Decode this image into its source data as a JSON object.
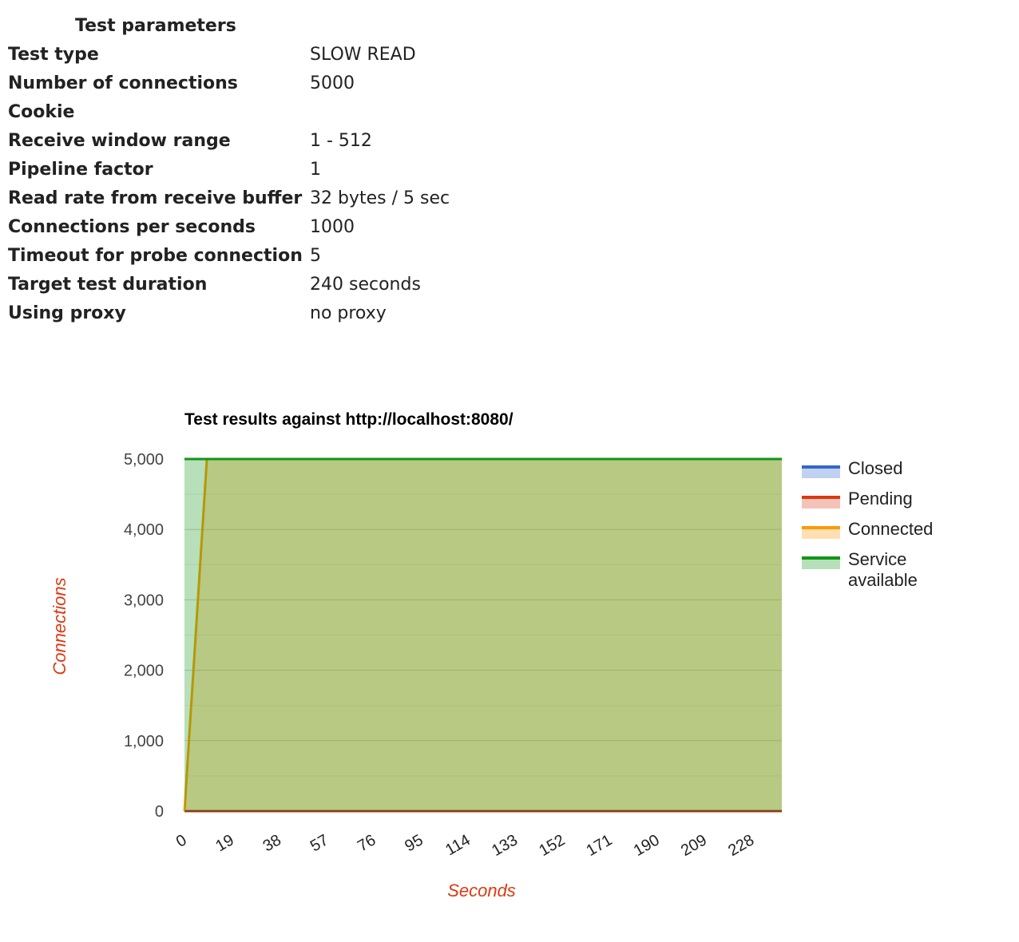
{
  "params": {
    "title": "Test parameters",
    "rows": [
      {
        "key": "Test type",
        "value": "SLOW READ"
      },
      {
        "key": "Number of connections",
        "value": "5000"
      },
      {
        "key": "Cookie",
        "value": ""
      },
      {
        "key": "Receive window range",
        "value": "1 - 512"
      },
      {
        "key": "Pipeline factor",
        "value": "1"
      },
      {
        "key": "Read rate from receive buffer",
        "value": "32 bytes / 5 sec"
      },
      {
        "key": "Connections per seconds",
        "value": "1000"
      },
      {
        "key": "Timeout for probe connection",
        "value": "5"
      },
      {
        "key": "Target test duration",
        "value": "240 seconds"
      },
      {
        "key": "Using proxy",
        "value": "no proxy"
      }
    ]
  },
  "chart_data": {
    "type": "area",
    "title": "Test results against http://localhost:8080/",
    "xlabel": "Seconds",
    "ylabel": "Connections",
    "xlim": [
      0,
      240
    ],
    "ylim": [
      0,
      5000
    ],
    "yticks": [
      0,
      1000,
      2000,
      3000,
      4000,
      5000
    ],
    "yticklabels": [
      "0",
      "1,000",
      "2,000",
      "3,000",
      "4,000",
      "5,000"
    ],
    "xticks": [
      0,
      19,
      38,
      57,
      76,
      95,
      114,
      133,
      152,
      171,
      190,
      209,
      228
    ],
    "xticklabels": [
      "0",
      "19",
      "38",
      "57",
      "76",
      "95",
      "114",
      "133",
      "152",
      "171",
      "190",
      "209",
      "228"
    ],
    "grid": true,
    "legend": "right",
    "series": [
      {
        "name": "Closed",
        "color": "#3366cc",
        "fill": "#c6d2ef",
        "x": [
          0,
          9,
          240
        ],
        "values": [
          0,
          0,
          0
        ]
      },
      {
        "name": "Pending",
        "color": "#dc3912",
        "fill": "#f3c4b8",
        "x": [
          0,
          9,
          240
        ],
        "values": [
          0,
          0,
          0
        ]
      },
      {
        "name": "Connected",
        "color": "#ff9900",
        "fill": "#ffe2b3",
        "x": [
          0,
          9,
          240
        ],
        "values": [
          0,
          5000,
          5000
        ]
      },
      {
        "name": "Service available",
        "color": "#109618",
        "fill": "#b7dab9",
        "x": [
          0,
          9,
          240
        ],
        "values": [
          5000,
          5000,
          5000
        ]
      }
    ],
    "legend_labels": [
      [
        "Closed"
      ],
      [
        "Pending"
      ],
      [
        "Connected"
      ],
      [
        "Service",
        "available"
      ]
    ]
  }
}
